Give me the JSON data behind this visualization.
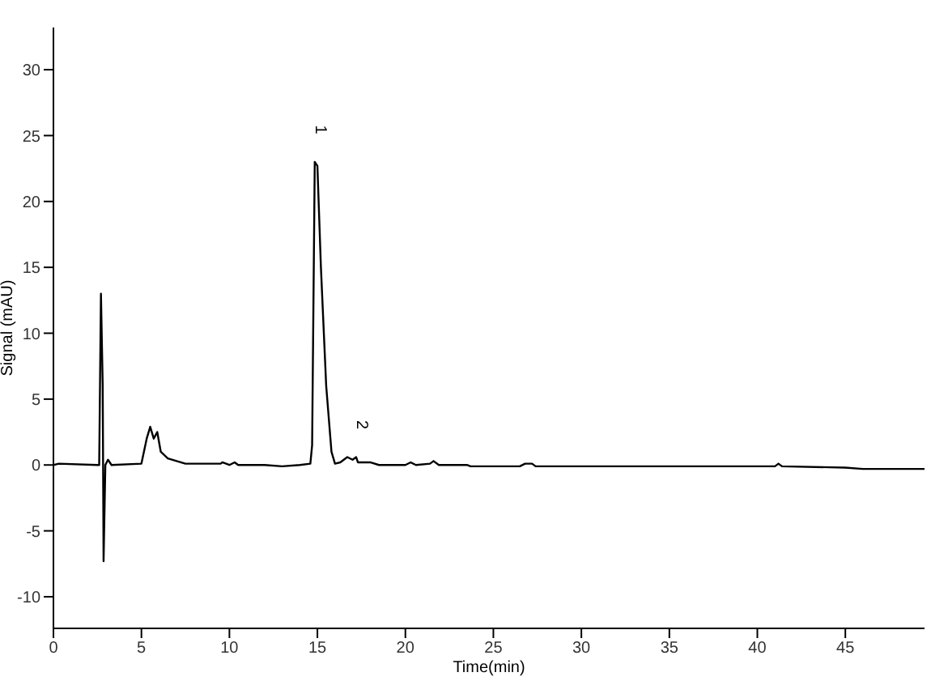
{
  "chart_data": {
    "type": "line",
    "xlabel": "Time(min)",
    "ylabel": "Signal (mAU)",
    "x": [
      0,
      0.3,
      2.5,
      2.6,
      2.7,
      2.8,
      2.85,
      2.95,
      3.1,
      3.3,
      5.0,
      5.3,
      5.5,
      5.7,
      5.9,
      6.1,
      6.5,
      7.5,
      8,
      9.5,
      9.6,
      10,
      10.3,
      10.5,
      12,
      13,
      14,
      14.6,
      14.7,
      14.85,
      15.0,
      15.2,
      15.5,
      15.8,
      16.0,
      16.3,
      16.7,
      17.0,
      17.2,
      17.3,
      18,
      18.5,
      20,
      20.3,
      20.6,
      21.4,
      21.6,
      21.9,
      23.5,
      23.7,
      26.5,
      26.8,
      27.2,
      27.4,
      32,
      41,
      41.2,
      41.4,
      45,
      46,
      48,
      49.5
    ],
    "series": [
      {
        "color": "#000000",
        "values": [
          0,
          0.1,
          0,
          0,
          13,
          6,
          -7.3,
          0,
          0.4,
          0,
          0.1,
          2.0,
          2.9,
          2.0,
          2.5,
          1.0,
          0.5,
          0.1,
          0.1,
          0.1,
          0.2,
          0,
          0.2,
          0,
          0,
          -0.1,
          0,
          0.1,
          1.5,
          23,
          22.7,
          15,
          6,
          1,
          0.1,
          0.2,
          0.6,
          0.4,
          0.6,
          0.2,
          0.2,
          0,
          0,
          0.2,
          0,
          0.1,
          0.3,
          0,
          0,
          -0.1,
          -0.1,
          0.1,
          0.1,
          -0.1,
          -0.1,
          -0.1,
          0.1,
          -0.1,
          -0.2,
          -0.3,
          -0.3,
          -0.3
        ]
      }
    ],
    "xlim": [
      0,
      49.5
    ],
    "xticks": [
      0,
      5,
      10,
      15,
      20,
      25,
      30,
      35,
      40,
      45
    ],
    "ylim": [
      -12.4,
      33.2
    ],
    "yticks": [
      -10,
      -5,
      0,
      5,
      10,
      15,
      20,
      25,
      30
    ],
    "annotations": [
      {
        "text": "1",
        "x": 14.85,
        "y": 23
      },
      {
        "text": "2",
        "x": 17.2,
        "y": 0.6
      }
    ],
    "grid": false,
    "legend": false,
    "marker": "none",
    "line_style": "solid"
  }
}
